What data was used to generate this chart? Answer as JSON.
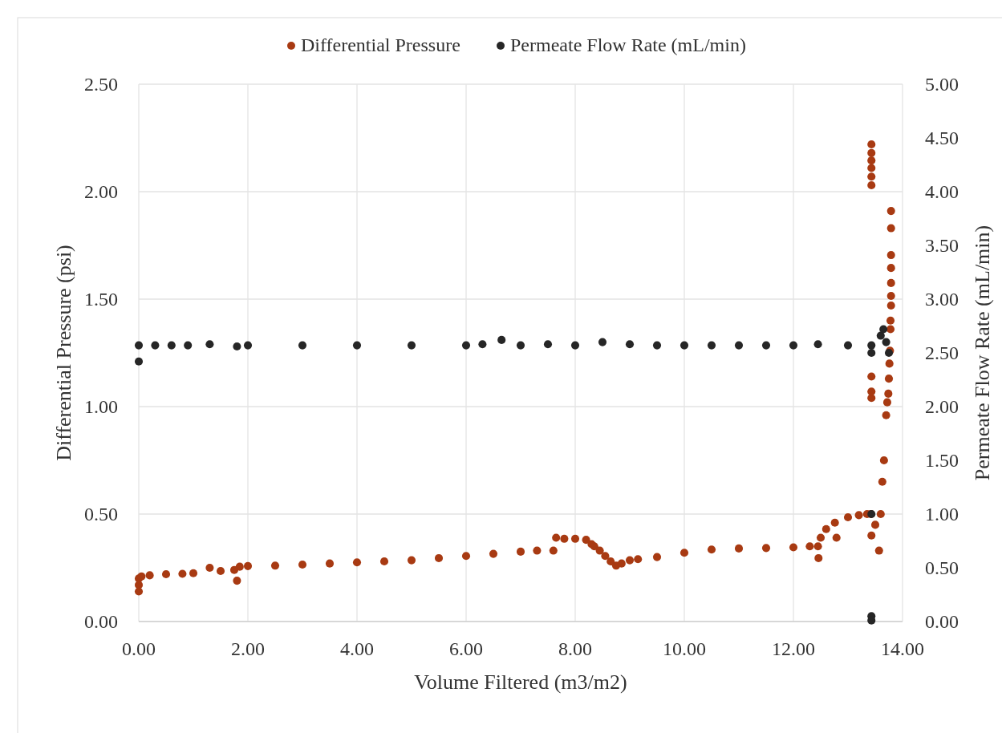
{
  "chart_data": {
    "type": "scatter",
    "xlabel": "Volume Filtered (m3/m2)",
    "ylabel": "Differential Pressure (psi)",
    "y2label": "Permeate Flow Rate (mL/min)",
    "xlim": [
      0,
      14
    ],
    "xticks": [
      {
        "value": 0,
        "label": "0.00"
      },
      {
        "value": 2,
        "label": "2.00"
      },
      {
        "value": 4,
        "label": "4.00"
      },
      {
        "value": 6,
        "label": "6.00"
      },
      {
        "value": 8,
        "label": "8.00"
      },
      {
        "value": 10,
        "label": "10.00"
      },
      {
        "value": 12,
        "label": "12.00"
      },
      {
        "value": 14,
        "label": "14.00"
      }
    ],
    "ylim": [
      0,
      2.5
    ],
    "yticks": [
      {
        "value": 0,
        "label": "0.00"
      },
      {
        "value": 0.5,
        "label": "0.50"
      },
      {
        "value": 1,
        "label": "1.00"
      },
      {
        "value": 1.5,
        "label": "1.50"
      },
      {
        "value": 2,
        "label": "2.00"
      },
      {
        "value": 2.5,
        "label": "2.50"
      }
    ],
    "y2lim": [
      0,
      5
    ],
    "y2ticks": [
      {
        "value": 0,
        "label": "0.00"
      },
      {
        "value": 0.5,
        "label": "0.50"
      },
      {
        "value": 1,
        "label": "1.00"
      },
      {
        "value": 1.5,
        "label": "1.50"
      },
      {
        "value": 2,
        "label": "2.00"
      },
      {
        "value": 2.5,
        "label": "2.50"
      },
      {
        "value": 3,
        "label": "3.00"
      },
      {
        "value": 3.5,
        "label": "3.50"
      },
      {
        "value": 4,
        "label": "4.00"
      },
      {
        "value": 4.5,
        "label": "4.50"
      },
      {
        "value": 5,
        "label": "5.00"
      }
    ],
    "grid": true,
    "legend": "top",
    "marker": "circle",
    "series": [
      {
        "name": "Differential Pressure",
        "color": "#a83a12",
        "x": [
          0,
          0,
          0,
          0.05,
          0.2,
          0.5,
          0.8,
          1.0,
          1.3,
          1.5,
          1.75,
          1.8,
          1.85,
          2.0,
          2.5,
          3.0,
          3.5,
          4.0,
          4.5,
          5.0,
          5.5,
          6.0,
          6.5,
          7.0,
          7.3,
          7.6,
          7.65,
          7.8,
          8.0,
          8.2,
          8.3,
          8.35,
          8.45,
          8.55,
          8.65,
          8.75,
          8.85,
          9.0,
          9.15,
          9.5,
          10.0,
          10.5,
          11.0,
          11.5,
          12.0,
          12.3,
          12.45,
          12.46,
          12.5,
          12.6,
          12.76,
          12.79,
          13.0,
          13.2,
          13.35,
          13.42,
          13.43,
          13.43,
          13.43,
          13.43,
          13.43,
          13.43,
          13.43,
          13.43,
          13.43,
          13.43,
          13.5,
          13.57,
          13.6,
          13.63,
          13.66,
          13.7,
          13.72,
          13.74,
          13.75,
          13.76,
          13.77,
          13.78,
          13.78,
          13.79,
          13.79,
          13.79,
          13.79,
          13.79,
          13.79,
          13.79
        ],
        "values": [
          0.14,
          0.17,
          0.2,
          0.21,
          0.215,
          0.22,
          0.222,
          0.225,
          0.25,
          0.235,
          0.24,
          0.19,
          0.255,
          0.258,
          0.26,
          0.265,
          0.27,
          0.275,
          0.28,
          0.285,
          0.295,
          0.305,
          0.315,
          0.325,
          0.33,
          0.33,
          0.39,
          0.385,
          0.385,
          0.38,
          0.36,
          0.35,
          0.33,
          0.305,
          0.28,
          0.26,
          0.27,
          0.285,
          0.29,
          0.3,
          0.32,
          0.335,
          0.34,
          0.342,
          0.345,
          0.35,
          0.35,
          0.295,
          0.39,
          0.43,
          0.46,
          0.39,
          0.485,
          0.495,
          0.5,
          0.5,
          0.4,
          1.04,
          1.07,
          1.14,
          2.03,
          2.07,
          2.11,
          2.145,
          2.18,
          2.22,
          0.45,
          0.33,
          0.5,
          0.65,
          0.75,
          0.96,
          1.02,
          1.06,
          1.13,
          1.2,
          1.26,
          1.36,
          1.4,
          1.47,
          1.515,
          1.575,
          1.645,
          1.705,
          1.83,
          1.91
        ]
      },
      {
        "name": "Permeate Flow Rate (mL/min)",
        "color": "#262626",
        "axis": "y2",
        "x": [
          0,
          0,
          0.3,
          0.6,
          0.9,
          1.3,
          1.8,
          2.0,
          3.0,
          4.0,
          5.0,
          6.0,
          6.3,
          6.65,
          7.0,
          7.5,
          8.0,
          8.5,
          9.0,
          9.5,
          10.0,
          10.5,
          11.0,
          11.5,
          12.0,
          12.45,
          13.0,
          13.43,
          13.43,
          13.43,
          13.43,
          13.43,
          13.6,
          13.65,
          13.7,
          13.75
        ],
        "values": [
          2.57,
          2.42,
          2.57,
          2.57,
          2.57,
          2.58,
          2.56,
          2.57,
          2.57,
          2.57,
          2.57,
          2.57,
          2.58,
          2.62,
          2.57,
          2.58,
          2.57,
          2.6,
          2.58,
          2.57,
          2.57,
          2.57,
          2.57,
          2.57,
          2.57,
          2.58,
          2.57,
          2.5,
          2.57,
          1.0,
          0.05,
          0.01,
          2.66,
          2.72,
          2.6,
          2.5
        ]
      }
    ]
  }
}
